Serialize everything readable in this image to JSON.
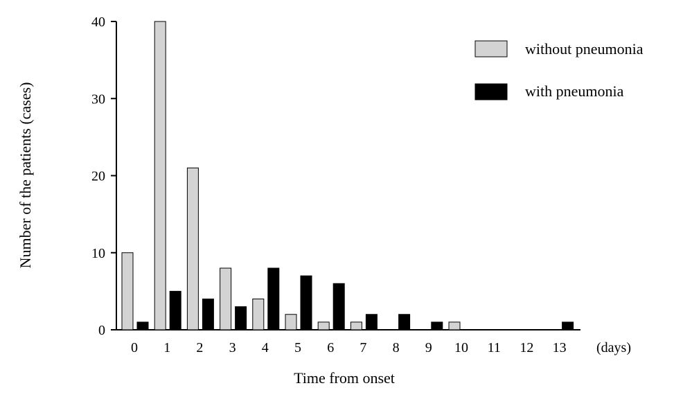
{
  "chart_data": {
    "type": "bar",
    "xlabel": "Time from onset",
    "x_unit": "(days)",
    "ylabel": "Number of the patients (cases)",
    "ylim": [
      0,
      40
    ],
    "yticks": [
      0,
      10,
      20,
      30,
      40
    ],
    "categories": [
      "0",
      "1",
      "2",
      "3",
      "4",
      "5",
      "6",
      "7",
      "8",
      "9",
      "10",
      "11",
      "12",
      "13"
    ],
    "series": [
      {
        "name": "without pneumonia",
        "color": "#d3d3d3",
        "values": [
          10,
          40,
          21,
          8,
          4,
          2,
          1,
          1,
          0,
          0,
          1,
          0,
          0,
          0
        ]
      },
      {
        "name": "with pneumonia",
        "color": "#000000",
        "values": [
          1,
          5,
          4,
          3,
          8,
          7,
          6,
          2,
          2,
          1,
          0,
          0,
          0,
          1
        ]
      }
    ],
    "legend_position": "top-right",
    "grid": false
  }
}
